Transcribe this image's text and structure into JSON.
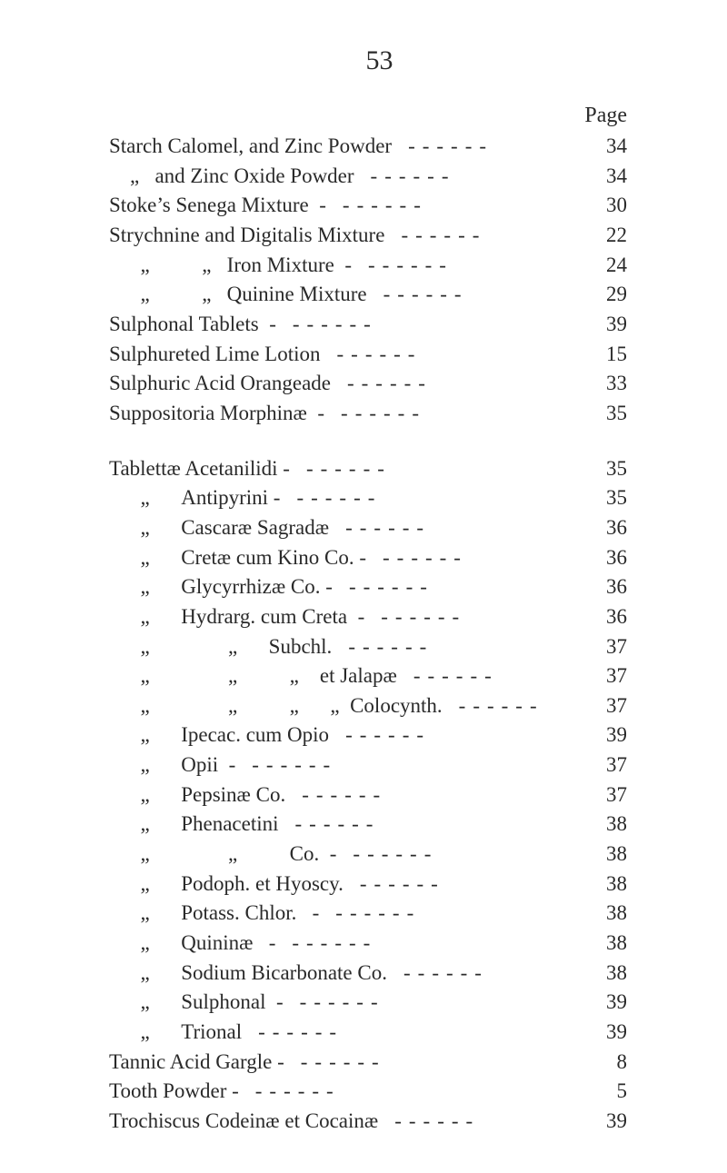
{
  "page_number": "53",
  "page_header": "Page",
  "entries": [
    {
      "label": "Starch Calomel, and Zinc Powder",
      "page": "34",
      "indent": 0
    },
    {
      "label": "    „   and Zinc Oxide Powder",
      "page": "34",
      "indent": 0
    },
    {
      "label": "Stoke’s Senega Mixture  -",
      "page": "30",
      "indent": 0
    },
    {
      "label": "Strychnine and Digitalis Mixture",
      "page": "22",
      "indent": 0
    },
    {
      "label": "      „          „   Iron Mixture  -",
      "page": "24",
      "indent": 0
    },
    {
      "label": "      „          „   Quinine Mixture",
      "page": "29",
      "indent": 0
    },
    {
      "label": "Sulphonal Tablets  -",
      "page": "39",
      "indent": 0
    },
    {
      "label": "Sulphureted Lime Lotion",
      "page": "15",
      "indent": 0
    },
    {
      "label": "Sulphuric Acid Orangeade",
      "page": "33",
      "indent": 0
    },
    {
      "label": "Suppositoria Morphinæ  -",
      "page": "35",
      "indent": 0
    },
    {
      "gap": true
    },
    {
      "label": "Tablettæ Acetanilidi -",
      "page": "35",
      "indent": 0
    },
    {
      "label": "      „      Antipyrini -",
      "page": "35",
      "indent": 0
    },
    {
      "label": "      „      Cascaræ Sagradæ",
      "page": "36",
      "indent": 0
    },
    {
      "label": "      „      Cretæ cum Kino Co. -",
      "page": "36",
      "indent": 0
    },
    {
      "label": "      „      Glycyrrhizæ Co. -",
      "page": "36",
      "indent": 0
    },
    {
      "label": "      „      Hydrarg. cum Creta  -",
      "page": "36",
      "indent": 0
    },
    {
      "label": "      „               „      Subchl.",
      "page": "37",
      "indent": 0
    },
    {
      "label": "      „               „          „    et Jalapæ",
      "page": "37",
      "indent": 0
    },
    {
      "label": "      „               „          „      „  Colocynth.",
      "page": "37",
      "indent": 0
    },
    {
      "label": "      „      Ipecac. cum Opio",
      "page": "39",
      "indent": 0
    },
    {
      "label": "      „      Opii  -",
      "page": "37",
      "indent": 0
    },
    {
      "label": "      „      Pepsinæ Co.",
      "page": "37",
      "indent": 0
    },
    {
      "label": "      „      Phenacetini",
      "page": "38",
      "indent": 0
    },
    {
      "label": "      „               „          Co.  -",
      "page": "38",
      "indent": 0
    },
    {
      "label": "      „      Podoph. et Hyoscy.",
      "page": "38",
      "indent": 0
    },
    {
      "label": "      „      Potass. Chlor.   -",
      "page": "38",
      "indent": 0
    },
    {
      "label": "      „      Quininæ   -",
      "page": "38",
      "indent": 0
    },
    {
      "label": "      „      Sodium Bicarbonate Co.",
      "page": "38",
      "indent": 0
    },
    {
      "label": "      „      Sulphonal  -",
      "page": "39",
      "indent": 0
    },
    {
      "label": "      „      Trional",
      "page": "39",
      "indent": 0
    },
    {
      "label": "Tannic Acid Gargle -",
      "page": "8",
      "indent": 0
    },
    {
      "label": "Tooth Powder -",
      "page": "5",
      "indent": 0
    },
    {
      "label": "Trochiscus Codeinæ et Cocainæ",
      "page": "39",
      "indent": 0
    }
  ]
}
